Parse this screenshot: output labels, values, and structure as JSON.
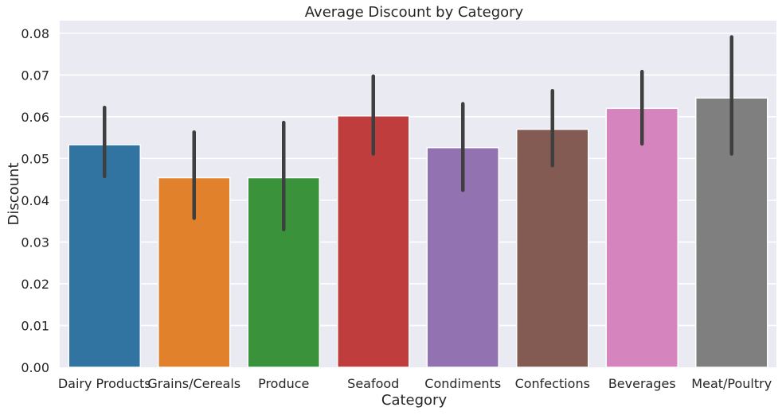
{
  "chart_data": {
    "type": "bar",
    "title": "Average Discount by Category",
    "xlabel": "Category",
    "ylabel": "Discount",
    "ylim": [
      0,
      0.083
    ],
    "yticks": [
      "0.00",
      "0.01",
      "0.02",
      "0.03",
      "0.04",
      "0.05",
      "0.06",
      "0.07",
      "0.08"
    ],
    "grid": true,
    "categories": [
      "Dairy Products",
      "Grains/Cereals",
      "Produce",
      "Seafood",
      "Condiments",
      "Confections",
      "Beverages",
      "Meat/Poultry"
    ],
    "values": [
      0.0533,
      0.0454,
      0.0454,
      0.0602,
      0.0526,
      0.057,
      0.062,
      0.0645
    ],
    "error_bars": [
      [
        0.0457,
        0.0622
      ],
      [
        0.0357,
        0.0563
      ],
      [
        0.033,
        0.0586
      ],
      [
        0.0511,
        0.0697
      ],
      [
        0.0424,
        0.0631
      ],
      [
        0.0483,
        0.0662
      ],
      [
        0.0535,
        0.0708
      ],
      [
        0.0511,
        0.0791
      ]
    ],
    "colors": [
      "#3274a1",
      "#e1812c",
      "#3a923a",
      "#c03d3e",
      "#9372b2",
      "#845b53",
      "#d684bd",
      "#7f7f7f"
    ],
    "background_color": "#eaeaf2",
    "errorbar_color": "#3f3f3f"
  }
}
